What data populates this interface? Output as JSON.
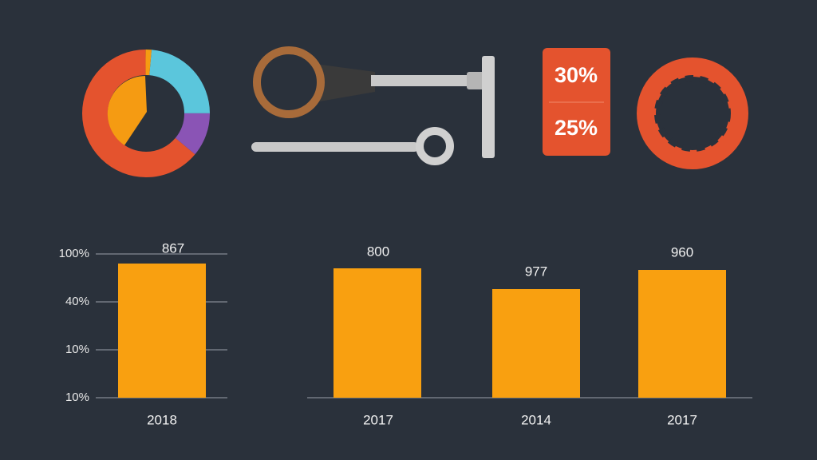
{
  "badge": {
    "top": "30%",
    "bottom": "25%"
  },
  "left_chart": {
    "y_labels": [
      "100%",
      "40%",
      "10%",
      "10%"
    ],
    "bar_label": "867",
    "category": "2018"
  },
  "right_chart": {
    "bars": [
      {
        "label": "800",
        "category": "2017"
      },
      {
        "label": "977",
        "category": "2014"
      },
      {
        "label": "960",
        "category": "2017"
      }
    ]
  }
}
